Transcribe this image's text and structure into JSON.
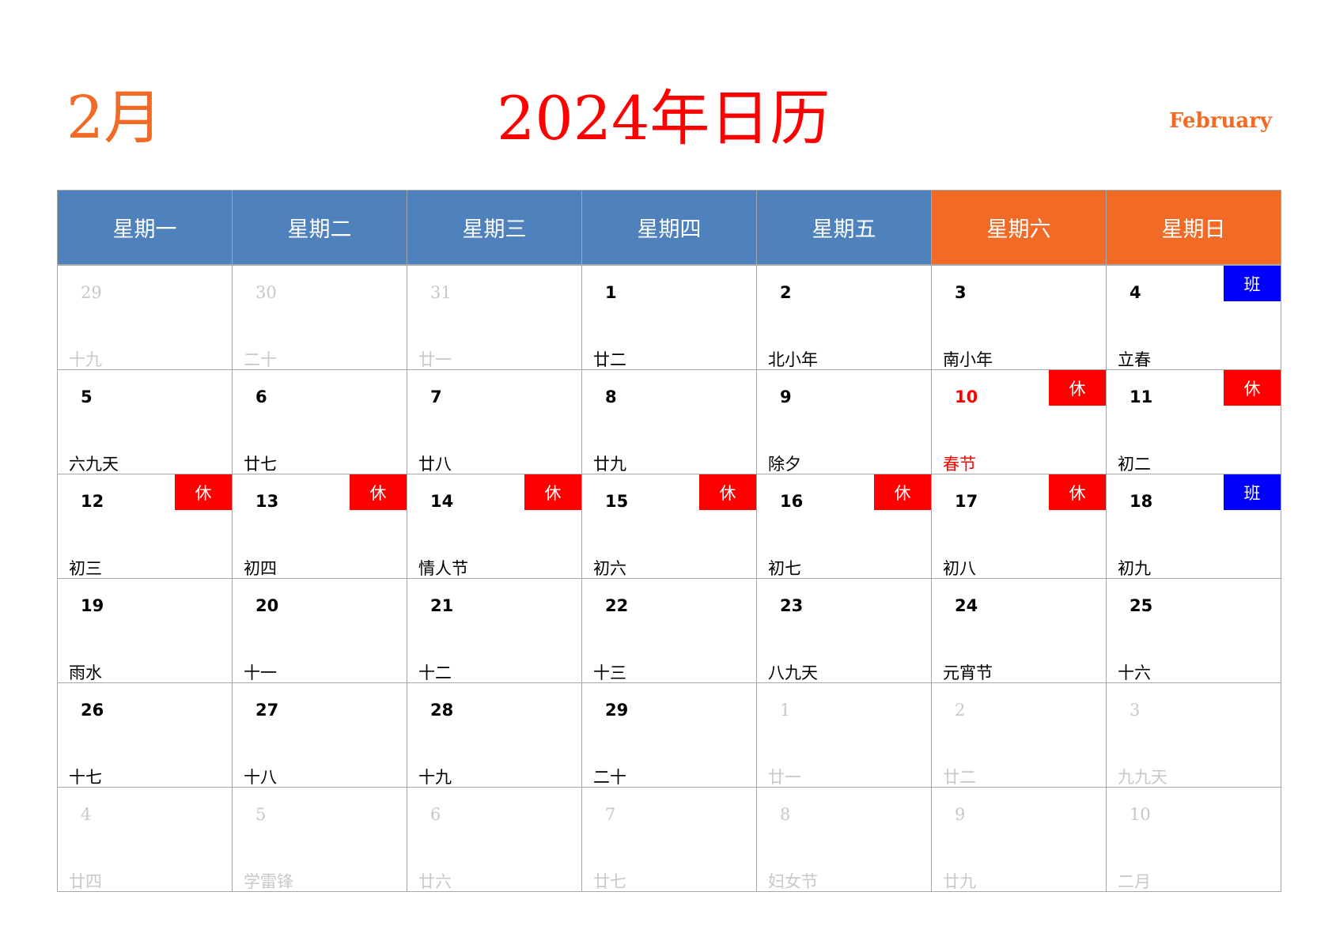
{
  "header": {
    "month": "2月",
    "title": "2024年日历",
    "english": "February"
  },
  "colors": {
    "weekday_header": "#4f81bd",
    "weekend_header": "#f26b26",
    "holiday_text": "#ff0000",
    "rest_badge": "#ff0000",
    "work_badge": "#0000ff",
    "faded_text": "#c8c8c8"
  },
  "weekdays": [
    {
      "label": "星期一",
      "weekend": false
    },
    {
      "label": "星期二",
      "weekend": false
    },
    {
      "label": "星期三",
      "weekend": false
    },
    {
      "label": "星期四",
      "weekend": false
    },
    {
      "label": "星期五",
      "weekend": false
    },
    {
      "label": "星期六",
      "weekend": true
    },
    {
      "label": "星期日",
      "weekend": true
    }
  ],
  "days": [
    {
      "day": "29",
      "lunar": "十九",
      "faded": true
    },
    {
      "day": "30",
      "lunar": "二十",
      "faded": true
    },
    {
      "day": "31",
      "lunar": "廿一",
      "faded": true
    },
    {
      "day": "1",
      "lunar": "廿二"
    },
    {
      "day": "2",
      "lunar": "北小年"
    },
    {
      "day": "3",
      "lunar": "南小年"
    },
    {
      "day": "4",
      "lunar": "立春",
      "badge": "班",
      "badge_type": "work"
    },
    {
      "day": "5",
      "lunar": "六九天"
    },
    {
      "day": "6",
      "lunar": "廿七"
    },
    {
      "day": "7",
      "lunar": "廿八"
    },
    {
      "day": "8",
      "lunar": "廿九"
    },
    {
      "day": "9",
      "lunar": "除夕"
    },
    {
      "day": "10",
      "lunar": "春节",
      "badge": "休",
      "badge_type": "rest",
      "holiday": true
    },
    {
      "day": "11",
      "lunar": "初二",
      "badge": "休",
      "badge_type": "rest"
    },
    {
      "day": "12",
      "lunar": "初三",
      "badge": "休",
      "badge_type": "rest"
    },
    {
      "day": "13",
      "lunar": "初四",
      "badge": "休",
      "badge_type": "rest"
    },
    {
      "day": "14",
      "lunar": "情人节",
      "badge": "休",
      "badge_type": "rest"
    },
    {
      "day": "15",
      "lunar": "初六",
      "badge": "休",
      "badge_type": "rest"
    },
    {
      "day": "16",
      "lunar": "初七",
      "badge": "休",
      "badge_type": "rest"
    },
    {
      "day": "17",
      "lunar": "初八",
      "badge": "休",
      "badge_type": "rest"
    },
    {
      "day": "18",
      "lunar": "初九",
      "badge": "班",
      "badge_type": "work"
    },
    {
      "day": "19",
      "lunar": "雨水"
    },
    {
      "day": "20",
      "lunar": "十一"
    },
    {
      "day": "21",
      "lunar": "十二"
    },
    {
      "day": "22",
      "lunar": "十三"
    },
    {
      "day": "23",
      "lunar": "八九天"
    },
    {
      "day": "24",
      "lunar": "元宵节"
    },
    {
      "day": "25",
      "lunar": "十六"
    },
    {
      "day": "26",
      "lunar": "十七"
    },
    {
      "day": "27",
      "lunar": "十八"
    },
    {
      "day": "28",
      "lunar": "十九"
    },
    {
      "day": "29",
      "lunar": "二十"
    },
    {
      "day": "1",
      "lunar": "廿一",
      "faded": true
    },
    {
      "day": "2",
      "lunar": "廿二",
      "faded": true
    },
    {
      "day": "3",
      "lunar": "九九天",
      "faded": true
    },
    {
      "day": "4",
      "lunar": "廿四",
      "faded": true
    },
    {
      "day": "5",
      "lunar": "学雷锋",
      "faded": true
    },
    {
      "day": "6",
      "lunar": "廿六",
      "faded": true
    },
    {
      "day": "7",
      "lunar": "廿七",
      "faded": true
    },
    {
      "day": "8",
      "lunar": "妇女节",
      "faded": true
    },
    {
      "day": "9",
      "lunar": "廿九",
      "faded": true
    },
    {
      "day": "10",
      "lunar": "二月",
      "faded": true
    }
  ]
}
